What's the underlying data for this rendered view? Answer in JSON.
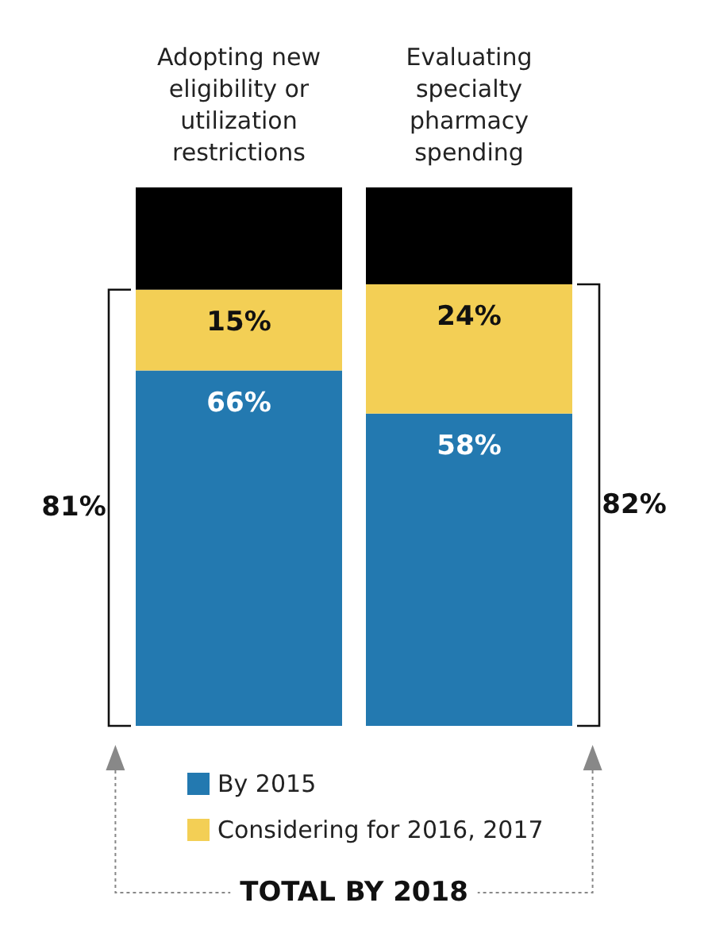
{
  "chart_data": {
    "type": "bar",
    "stacked": true,
    "categories": [
      "Adopting new\neligibility or\nutilization\nrestrictions",
      "Evaluating\nspecialty\npharmacy\nspending"
    ],
    "series": [
      {
        "name": "By 2015",
        "color": "#2379b0",
        "values": [
          66,
          58
        ],
        "value_labels": [
          "66%",
          "58%"
        ]
      },
      {
        "name": "Considering for 2016, 2017",
        "color": "#f3cf55",
        "values": [
          15,
          24
        ],
        "value_labels": [
          "15%",
          "24%"
        ]
      },
      {
        "color": "#000000",
        "values": [
          19,
          18
        ]
      }
    ],
    "ylim": [
      0,
      100
    ],
    "legend": "bottom",
    "annotations": [
      "81%",
      "82%",
      "TOTAL BY 2018"
    ]
  }
}
